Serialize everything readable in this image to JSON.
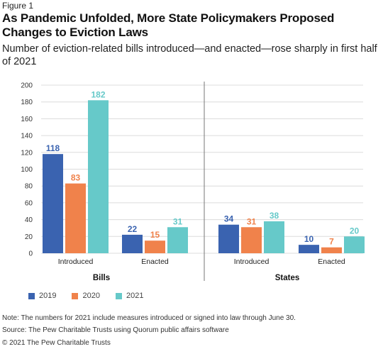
{
  "figure_label": "Figure 1",
  "title": "As Pandemic Unfolded, More State Policymakers Proposed Changes to Eviction Laws",
  "subtitle": "Number of eviction-related bills introduced—and enacted—rose sharply in first half of 2021",
  "colors": {
    "2019": "#3a63b0",
    "2020": "#f0824b",
    "2021": "#66c9c9"
  },
  "chart_data": {
    "type": "bar",
    "ylim": [
      0,
      200
    ],
    "yticks": [
      0,
      20,
      40,
      60,
      80,
      100,
      120,
      140,
      160,
      180,
      200
    ],
    "grid": true,
    "legend_position": "bottom-left",
    "series_names": [
      "2019",
      "2020",
      "2021"
    ],
    "panels": [
      {
        "label": "Bills",
        "groups": [
          {
            "category": "Introduced",
            "values": [
              118,
              83,
              182
            ]
          },
          {
            "category": "Enacted",
            "values": [
              22,
              15,
              31
            ]
          }
        ]
      },
      {
        "label": "States",
        "groups": [
          {
            "category": "Introduced",
            "values": [
              34,
              31,
              38
            ]
          },
          {
            "category": "Enacted",
            "values": [
              10,
              7,
              20
            ]
          }
        ]
      }
    ]
  },
  "legend": [
    {
      "label": "2019",
      "color": "#3a63b0"
    },
    {
      "label": "2020",
      "color": "#f0824b"
    },
    {
      "label": "2021",
      "color": "#66c9c9"
    }
  ],
  "note": "Note: The numbers for 2021 include measures introduced or signed into law through June 30.",
  "source": "Source: The Pew Charitable Trusts using Quorum public affairs software",
  "copyright": "© 2021 The Pew Charitable Trusts"
}
